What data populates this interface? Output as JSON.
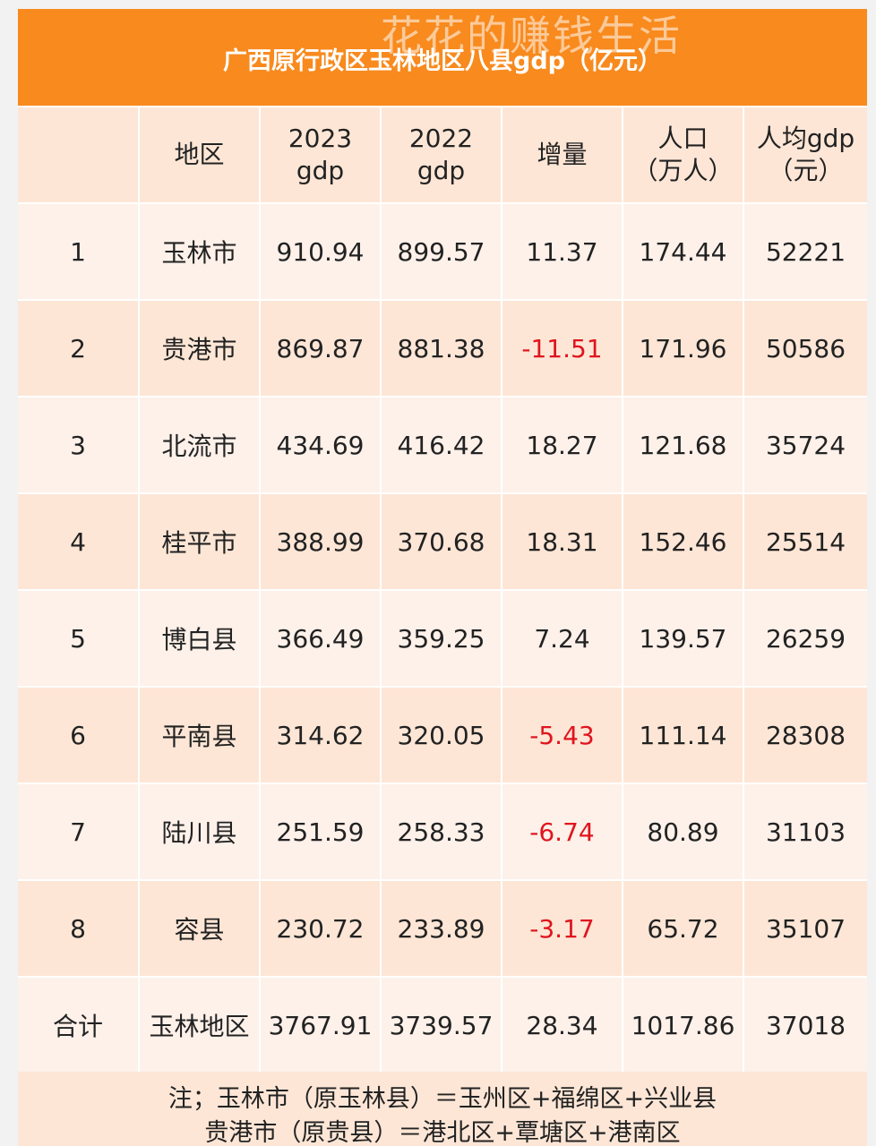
{
  "title": "广西原行政区玉林地区八县gdp（亿元）",
  "watermark": "花花的赚钱生活",
  "columns": [
    "",
    "地区",
    "2023\ngdp",
    "2022\ngdp",
    "增量",
    "人口\n（万人）",
    "人均gdp\n（元）"
  ],
  "column_lines": [
    [
      ""
    ],
    [
      "地区"
    ],
    [
      "2023",
      "gdp"
    ],
    [
      "2022",
      "gdp"
    ],
    [
      "增量"
    ],
    [
      "人口",
      "（万人）"
    ],
    [
      "人均gdp",
      "（元）"
    ]
  ],
  "rows": [
    {
      "rank": "1",
      "region": "玉林市",
      "gdp2023": "910.94",
      "gdp2022": "899.57",
      "delta": "11.37",
      "population": "174.44",
      "per_capita": "52221",
      "negative": false
    },
    {
      "rank": "2",
      "region": "贵港市",
      "gdp2023": "869.87",
      "gdp2022": "881.38",
      "delta": "-11.51",
      "population": "171.96",
      "per_capita": "50586",
      "negative": true
    },
    {
      "rank": "3",
      "region": "北流市",
      "gdp2023": "434.69",
      "gdp2022": "416.42",
      "delta": "18.27",
      "population": "121.68",
      "per_capita": "35724",
      "negative": false
    },
    {
      "rank": "4",
      "region": "桂平市",
      "gdp2023": "388.99",
      "gdp2022": "370.68",
      "delta": "18.31",
      "population": "152.46",
      "per_capita": "25514",
      "negative": false
    },
    {
      "rank": "5",
      "region": "博白县",
      "gdp2023": "366.49",
      "gdp2022": "359.25",
      "delta": "7.24",
      "population": "139.57",
      "per_capita": "26259",
      "negative": false
    },
    {
      "rank": "6",
      "region": "平南县",
      "gdp2023": "314.62",
      "gdp2022": "320.05",
      "delta": "-5.43",
      "population": "111.14",
      "per_capita": "28308",
      "negative": true
    },
    {
      "rank": "7",
      "region": "陆川县",
      "gdp2023": "251.59",
      "gdp2022": "258.33",
      "delta": "-6.74",
      "population": "80.89",
      "per_capita": "31103",
      "negative": true
    },
    {
      "rank": "8",
      "region": "容县",
      "gdp2023": "230.72",
      "gdp2022": "233.89",
      "delta": "-3.17",
      "population": "65.72",
      "per_capita": "35107",
      "negative": true
    }
  ],
  "total": {
    "label": "合计",
    "region": "玉林地区",
    "gdp2023": "3767.91",
    "gdp2022": "3739.57",
    "delta": "28.34",
    "population": "1017.86",
    "per_capita": "37018"
  },
  "note_lines": [
    "注；玉林市（原玉林县）＝玉州区+福绵区+兴业县",
    "贵港市（原贵县）＝港北区+覃塘区+港南区"
  ],
  "colors": {
    "title_bg": "#f88a1e",
    "row_light": "#fdf1ea",
    "row_dark": "#fde6d6",
    "negative": "#e0141e"
  }
}
